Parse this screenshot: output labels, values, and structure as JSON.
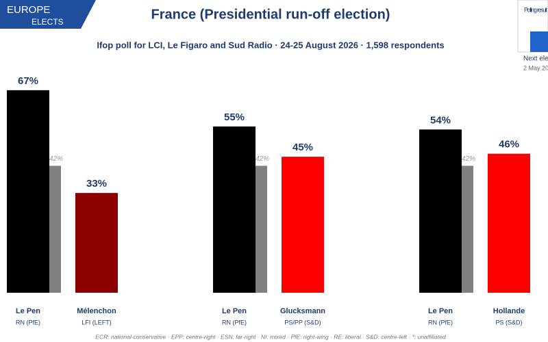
{
  "header": {
    "logo_top": "EUROPE",
    "logo_bottom": "ELECTS",
    "title": "France (Presidential run-off election)",
    "subtitle": "Ifop poll for LCI, Le Figaro and Sud Radio · 24-25 August 2026 · 1,598 respondents",
    "side_box": "Polling result",
    "side_next": "Next ele",
    "side_date": "2 May 20"
  },
  "footer": "ECR: national-conservative · EPP: centre-right · ESN: far-right · NI: mixed · PfE: right-wing · RE: liberal · S&D: centre-left · *: unaffiliated",
  "chart_data": [
    {
      "type": "bar",
      "categories": [
        "Le Pen",
        "Mélenchon"
      ],
      "parties": [
        "RN (PfE)",
        "LFI (LEFT)"
      ],
      "values": [
        67,
        33
      ],
      "value_labels": [
        "67%",
        "33%"
      ],
      "colors": [
        "#000000",
        "#8b0000"
      ],
      "ylim": [
        0,
        100
      ],
      "previous": {
        "values": [
          42,
          null
        ],
        "value_labels": [
          "42%",
          null
        ],
        "color": "#808080"
      }
    },
    {
      "type": "bar",
      "categories": [
        "Le Pen",
        "Glucksmann"
      ],
      "parties": [
        "RN (PfE)",
        "PS/PP (S&D)"
      ],
      "values": [
        55,
        45
      ],
      "value_labels": [
        "55%",
        "45%"
      ],
      "colors": [
        "#000000",
        "#ff0000"
      ],
      "ylim": [
        0,
        100
      ],
      "previous": {
        "values": [
          42,
          null
        ],
        "value_labels": [
          "42%",
          null
        ],
        "color": "#808080"
      }
    },
    {
      "type": "bar",
      "categories": [
        "Le Pen",
        "Hollande"
      ],
      "parties": [
        "RN (PfE)",
        "PS (S&D)"
      ],
      "values": [
        54,
        46
      ],
      "value_labels": [
        "54%",
        "46%"
      ],
      "colors": [
        "#000000",
        "#ff0000"
      ],
      "ylim": [
        0,
        100
      ],
      "previous": {
        "values": [
          42,
          null
        ],
        "value_labels": [
          "42%",
          null
        ],
        "color": "#808080"
      }
    }
  ]
}
